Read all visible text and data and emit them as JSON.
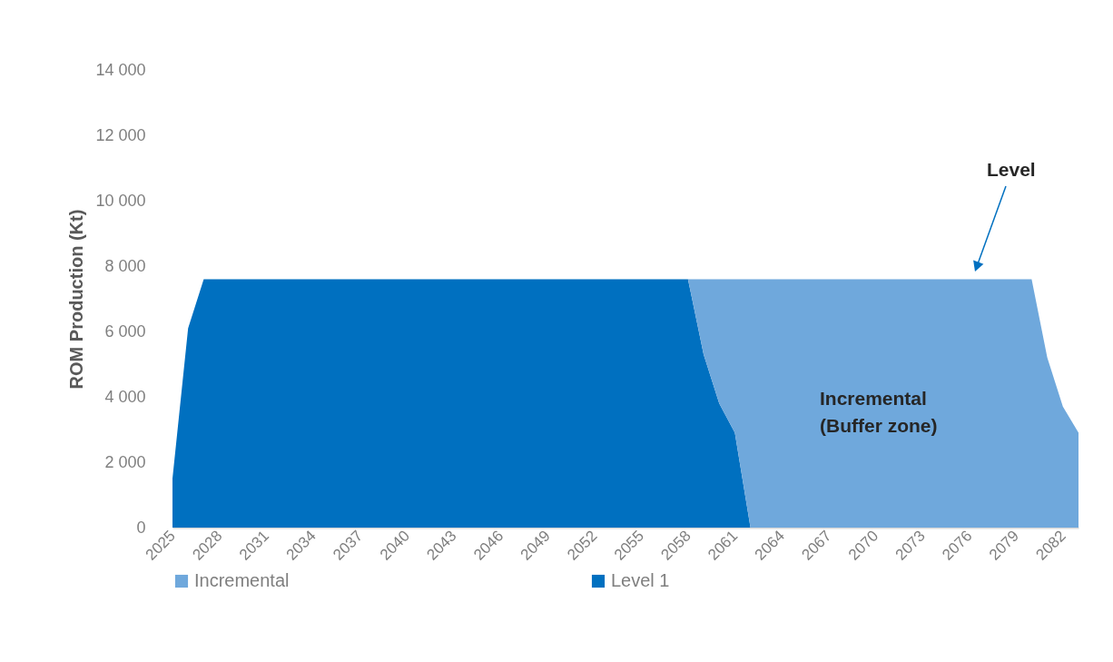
{
  "chart_data": {
    "type": "area",
    "stacked": true,
    "ylabel": "ROM Production (Kt)",
    "categories": [
      "2025",
      null,
      null,
      "2028",
      null,
      null,
      "2031",
      null,
      null,
      "2034",
      null,
      null,
      "2037",
      null,
      null,
      "2040",
      null,
      null,
      "2043",
      null,
      null,
      "2046",
      null,
      null,
      "2049",
      null,
      null,
      "2052",
      null,
      null,
      "2055",
      null,
      null,
      "2058",
      null,
      null,
      "2061",
      null,
      null,
      "2064",
      null,
      null,
      "2067",
      null,
      null,
      "2070",
      null,
      null,
      "2073",
      null,
      null,
      "2076",
      null,
      null,
      "2079",
      null,
      null,
      "2082",
      null
    ],
    "series": [
      {
        "name": "Level 1",
        "color": "#0070c0",
        "values": [
          1500,
          6100,
          7600,
          7600,
          7600,
          7600,
          7600,
          7600,
          7600,
          7600,
          7600,
          7600,
          7600,
          7600,
          7600,
          7600,
          7600,
          7600,
          7600,
          7600,
          7600,
          7600,
          7600,
          7600,
          7600,
          7600,
          7600,
          7600,
          7600,
          7600,
          7600,
          7600,
          7600,
          7600,
          5300,
          3800,
          2900,
          0,
          0,
          0,
          0,
          0,
          0,
          0,
          0,
          0,
          0,
          0,
          0,
          0,
          0,
          0,
          0,
          0,
          0,
          0,
          0,
          0,
          0
        ]
      },
      {
        "name": "Incremental",
        "color": "#6fa8dc",
        "values": [
          null,
          null,
          null,
          null,
          null,
          null,
          null,
          null,
          null,
          null,
          null,
          null,
          null,
          null,
          null,
          null,
          null,
          null,
          null,
          null,
          null,
          null,
          null,
          null,
          null,
          null,
          null,
          null,
          null,
          null,
          null,
          null,
          null,
          0,
          2300,
          3800,
          4700,
          7600,
          7600,
          7600,
          7600,
          7600,
          7600,
          7600,
          7600,
          7600,
          7600,
          7600,
          7600,
          7600,
          7600,
          7600,
          7600,
          7600,
          7600,
          7600,
          5200,
          3700,
          2900
        ]
      }
    ],
    "ylim": [
      0,
      14000
    ],
    "yticks": [
      {
        "value": 0,
        "label": "0"
      },
      {
        "value": 2000,
        "label": "2 000"
      },
      {
        "value": 4000,
        "label": "4 000"
      },
      {
        "value": 6000,
        "label": "6 000"
      },
      {
        "value": 8000,
        "label": "8 000"
      },
      {
        "value": 10000,
        "label": "10 000"
      },
      {
        "value": 12000,
        "label": "12 000"
      },
      {
        "value": 14000,
        "label": "14 000"
      }
    ],
    "grid": false,
    "legend": "bottom",
    "annotations": [
      "Level",
      "Incremental\n(Buffer zone)"
    ]
  }
}
